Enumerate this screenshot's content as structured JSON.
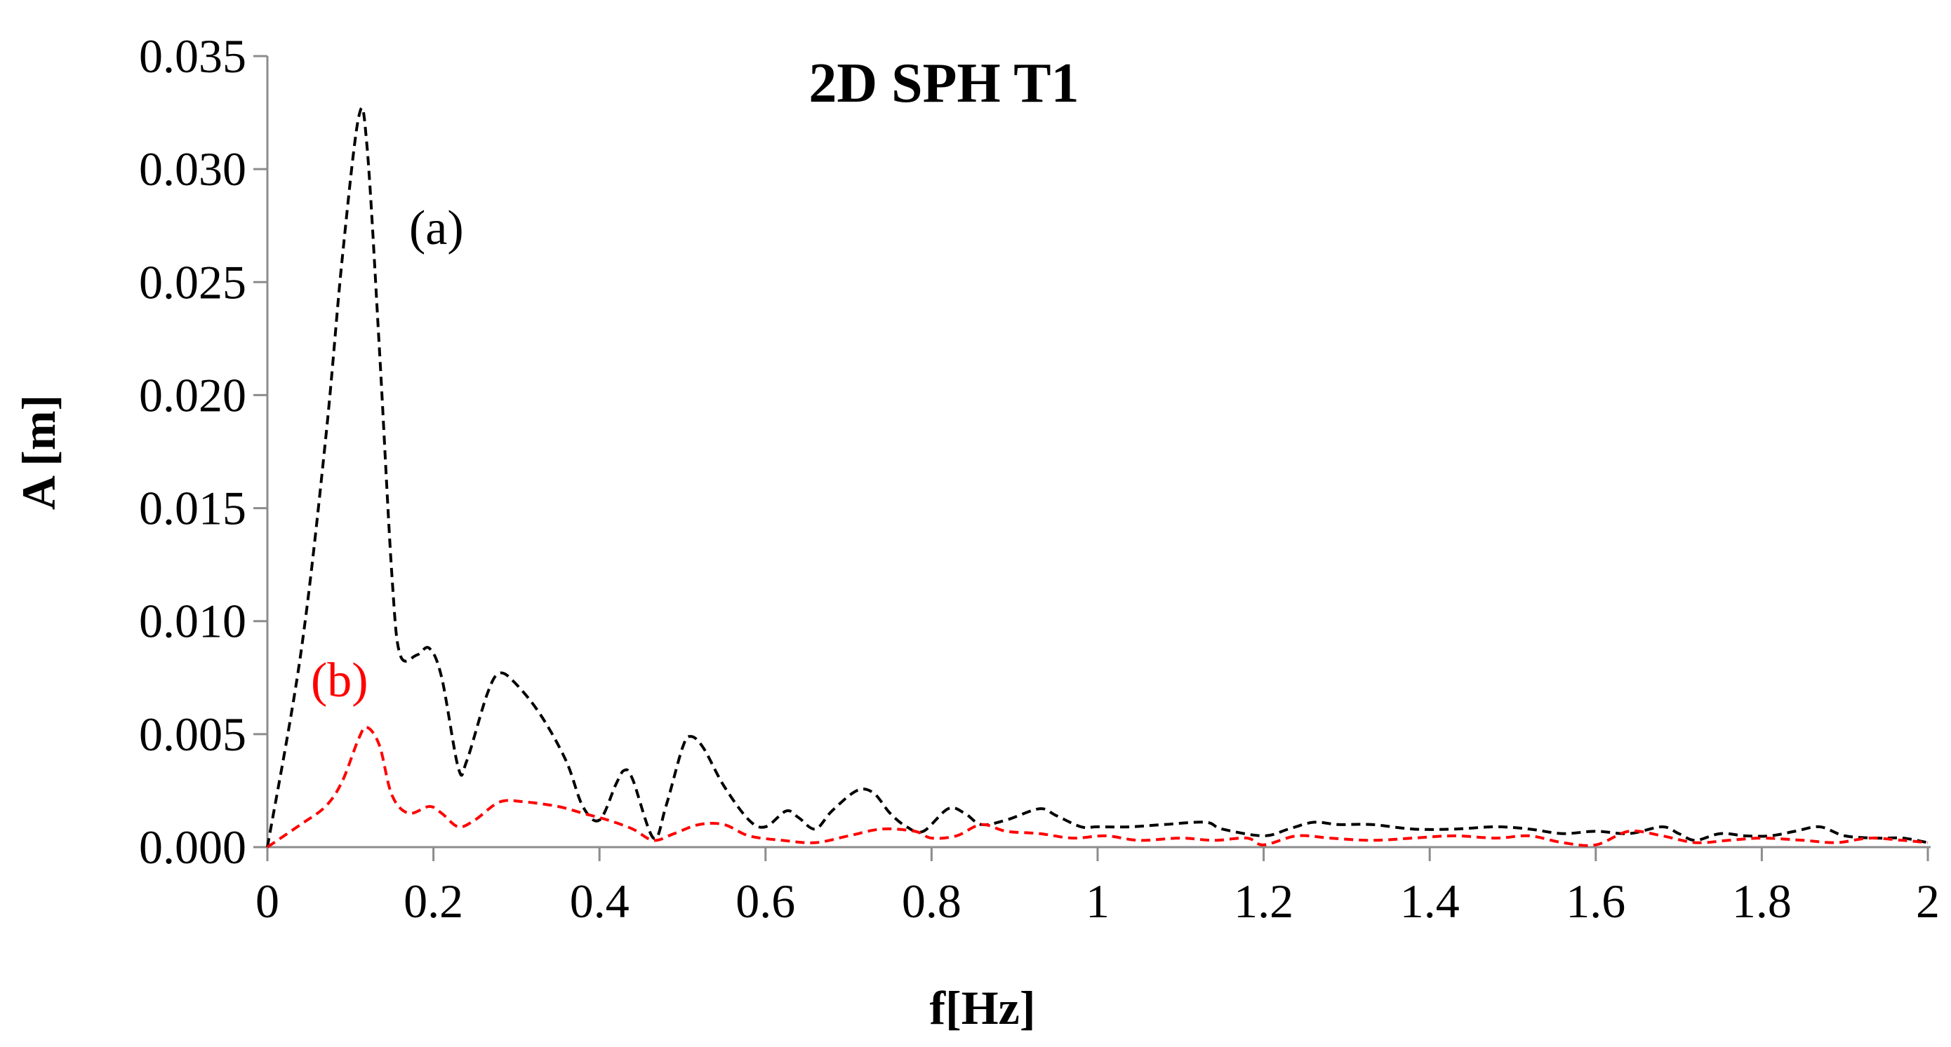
{
  "chart_data": {
    "type": "line",
    "title": "2D SPH T1",
    "xlabel": "f[Hz]",
    "ylabel": "A [m]",
    "xlim": [
      0,
      2
    ],
    "ylim": [
      0,
      0.035
    ],
    "x_ticks": [
      "0",
      "0.2",
      "0.4",
      "0.6",
      "0.8",
      "1",
      "1.2",
      "1.4",
      "1.6",
      "1.8",
      "2"
    ],
    "y_ticks": [
      "0.000",
      "0.005",
      "0.010",
      "0.015",
      "0.020",
      "0.025",
      "0.030",
      "0.035"
    ],
    "grid": false,
    "legend": "none",
    "series": [
      {
        "label": "(a)",
        "color": "#000000",
        "line_style": "dashed",
        "points": [
          [
            0,
            0
          ],
          [
            0.04,
            0.0085
          ],
          [
            0.07,
            0.018
          ],
          [
            0.09,
            0.026
          ],
          [
            0.11,
            0.0323
          ],
          [
            0.12,
            0.031
          ],
          [
            0.135,
            0.022
          ],
          [
            0.15,
            0.012
          ],
          [
            0.16,
            0.0085
          ],
          [
            0.18,
            0.0085
          ],
          [
            0.195,
            0.0088
          ],
          [
            0.21,
            0.0075
          ],
          [
            0.23,
            0.0035
          ],
          [
            0.24,
            0.0038
          ],
          [
            0.265,
            0.0068
          ],
          [
            0.28,
            0.0077
          ],
          [
            0.3,
            0.0072
          ],
          [
            0.33,
            0.0058
          ],
          [
            0.36,
            0.0038
          ],
          [
            0.38,
            0.0018
          ],
          [
            0.4,
            0.0012
          ],
          [
            0.42,
            0.0028
          ],
          [
            0.43,
            0.0034
          ],
          [
            0.44,
            0.003
          ],
          [
            0.465,
            0.0004
          ],
          [
            0.48,
            0.0018
          ],
          [
            0.5,
            0.0044
          ],
          [
            0.51,
            0.0049
          ],
          [
            0.525,
            0.0044
          ],
          [
            0.55,
            0.0027
          ],
          [
            0.58,
            0.0012
          ],
          [
            0.6,
            0.0009
          ],
          [
            0.625,
            0.0016
          ],
          [
            0.64,
            0.0013
          ],
          [
            0.66,
            0.0008
          ],
          [
            0.68,
            0.0016
          ],
          [
            0.71,
            0.0025
          ],
          [
            0.73,
            0.0024
          ],
          [
            0.75,
            0.0015
          ],
          [
            0.77,
            0.0009
          ],
          [
            0.79,
            0.0007
          ],
          [
            0.82,
            0.0017
          ],
          [
            0.84,
            0.0015
          ],
          [
            0.86,
            0.001
          ],
          [
            0.89,
            0.0012
          ],
          [
            0.93,
            0.0017
          ],
          [
            0.95,
            0.0014
          ],
          [
            0.98,
            0.0009
          ],
          [
            1.0,
            0.0009
          ],
          [
            1.04,
            0.0009
          ],
          [
            1.08,
            0.001
          ],
          [
            1.13,
            0.0011
          ],
          [
            1.15,
            0.0008
          ],
          [
            1.2,
            0.0005
          ],
          [
            1.23,
            0.0008
          ],
          [
            1.26,
            0.0011
          ],
          [
            1.29,
            0.001
          ],
          [
            1.33,
            0.001
          ],
          [
            1.38,
            0.0008
          ],
          [
            1.43,
            0.0008
          ],
          [
            1.48,
            0.0009
          ],
          [
            1.52,
            0.0008
          ],
          [
            1.56,
            0.0006
          ],
          [
            1.6,
            0.0007
          ],
          [
            1.64,
            0.0006
          ],
          [
            1.68,
            0.0009
          ],
          [
            1.7,
            0.0006
          ],
          [
            1.72,
            0.0003
          ],
          [
            1.75,
            0.0006
          ],
          [
            1.78,
            0.0005
          ],
          [
            1.81,
            0.0005
          ],
          [
            1.84,
            0.0007
          ],
          [
            1.87,
            0.0009
          ],
          [
            1.9,
            0.0005
          ],
          [
            1.94,
            0.0004
          ],
          [
            1.97,
            0.0004
          ],
          [
            2.0,
            0.0002
          ]
        ]
      },
      {
        "label": "(b)",
        "color": "#ff0000",
        "line_style": "dashed",
        "points": [
          [
            0,
            0
          ],
          [
            0.04,
            0.001
          ],
          [
            0.07,
            0.0018
          ],
          [
            0.09,
            0.0029
          ],
          [
            0.11,
            0.0048
          ],
          [
            0.12,
            0.0053
          ],
          [
            0.135,
            0.0045
          ],
          [
            0.15,
            0.0023
          ],
          [
            0.17,
            0.0015
          ],
          [
            0.195,
            0.0018
          ],
          [
            0.21,
            0.0015
          ],
          [
            0.23,
            0.0009
          ],
          [
            0.25,
            0.0012
          ],
          [
            0.28,
            0.002
          ],
          [
            0.31,
            0.002
          ],
          [
            0.35,
            0.0018
          ],
          [
            0.38,
            0.0015
          ],
          [
            0.41,
            0.0012
          ],
          [
            0.44,
            0.0008
          ],
          [
            0.465,
            0.0003
          ],
          [
            0.49,
            0.0006
          ],
          [
            0.52,
            0.001
          ],
          [
            0.55,
            0.001
          ],
          [
            0.58,
            0.0005
          ],
          [
            0.62,
            0.0003
          ],
          [
            0.66,
            0.0002
          ],
          [
            0.7,
            0.0005
          ],
          [
            0.74,
            0.0008
          ],
          [
            0.78,
            0.0007
          ],
          [
            0.8,
            0.0004
          ],
          [
            0.83,
            0.0005
          ],
          [
            0.86,
            0.001
          ],
          [
            0.89,
            0.0007
          ],
          [
            0.93,
            0.0006
          ],
          [
            0.97,
            0.0004
          ],
          [
            1.01,
            0.0005
          ],
          [
            1.05,
            0.0003
          ],
          [
            1.1,
            0.0004
          ],
          [
            1.14,
            0.0003
          ],
          [
            1.18,
            0.0004
          ],
          [
            1.2,
            0.0001
          ],
          [
            1.24,
            0.0005
          ],
          [
            1.28,
            0.0004
          ],
          [
            1.33,
            0.0003
          ],
          [
            1.38,
            0.0004
          ],
          [
            1.43,
            0.0005
          ],
          [
            1.48,
            0.0004
          ],
          [
            1.52,
            0.0005
          ],
          [
            1.56,
            0.0002
          ],
          [
            1.6,
            0.0001
          ],
          [
            1.64,
            0.0007
          ],
          [
            1.68,
            0.0005
          ],
          [
            1.72,
            0.0002
          ],
          [
            1.76,
            0.0003
          ],
          [
            1.8,
            0.0004
          ],
          [
            1.85,
            0.0003
          ],
          [
            1.89,
            0.0002
          ],
          [
            1.93,
            0.0004
          ],
          [
            1.97,
            0.0003
          ],
          [
            2.0,
            0.0002
          ]
        ]
      }
    ]
  }
}
